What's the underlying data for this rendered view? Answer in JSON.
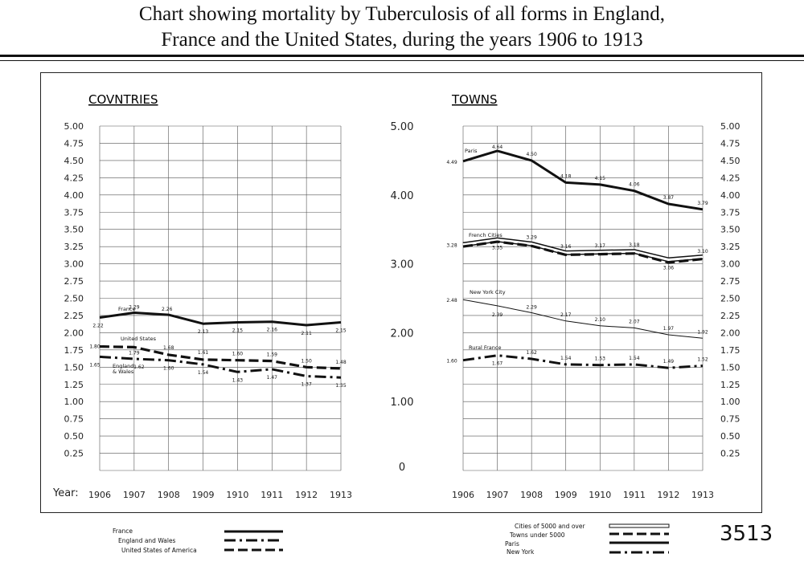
{
  "title_line1": "Chart showing mortality by Tuberculosis of all forms in England,",
  "title_line2": "France and the United States, during the years 1906 to 1913",
  "page_number": "3513",
  "year_label": "Year:",
  "legend_left": [
    "France",
    "England and Wales",
    "United States of America"
  ],
  "legend_right": [
    "Cities of 5000 and over",
    "Towns under 5000",
    "Paris",
    "New York"
  ],
  "chart_data": [
    {
      "type": "line",
      "title": "COVNTRIES",
      "xlabel": "Year:",
      "x": [
        "1906",
        "1907",
        "1908",
        "1909",
        "1910",
        "1911",
        "1912",
        "1913"
      ],
      "ylim": [
        0,
        5
      ],
      "yticks": [
        "5.00",
        "4.75",
        "4.50",
        "4.25",
        "4.00",
        "3.75",
        "3.50",
        "3.25",
        "3.00",
        "2.75",
        "2.50",
        "2.25",
        "2.00",
        "1.75",
        "1.50",
        "1.25",
        "1.00",
        "0.75",
        "0.50",
        "0.25"
      ],
      "series": [
        {
          "name": "France",
          "style": "solid",
          "values": [
            2.22,
            2.29,
            2.26,
            2.13,
            2.15,
            2.16,
            2.11,
            2.15
          ],
          "labels": [
            "2.22",
            "2.29",
            "2.26",
            "2.13",
            "2.15",
            "2.16",
            "2.11",
            "2.15"
          ]
        },
        {
          "name": "United States",
          "style": "dashed",
          "values": [
            1.8,
            1.79,
            1.68,
            1.61,
            1.6,
            1.59,
            1.5,
            1.48
          ],
          "labels": [
            "1.80",
            "1.79",
            "1.68",
            "1.61",
            "1.60",
            "1.59",
            "1.50",
            "1.48"
          ]
        },
        {
          "name": "England & Wales",
          "style": "dashdot",
          "values": [
            1.65,
            1.62,
            1.6,
            1.54,
            1.43,
            1.47,
            1.37,
            1.35
          ],
          "labels": [
            "1.65",
            "1.62",
            "1.60",
            "1.54",
            "1.43",
            "1.47",
            "1.37",
            "1.35"
          ]
        }
      ]
    },
    {
      "type": "line",
      "title": "TOWNS",
      "x": [
        "1906",
        "1907",
        "1908",
        "1909",
        "1910",
        "1911",
        "1912",
        "1913"
      ],
      "ylim": [
        0,
        5
      ],
      "yticks_left": [
        "5.00",
        "4.00",
        "3.00",
        "2.00",
        "1.00",
        "0"
      ],
      "yticks_right": [
        "5.00",
        "4.75",
        "4.50",
        "4.25",
        "4.00",
        "3.75",
        "3.50",
        "3.25",
        "3.00",
        "2.75",
        "2.50",
        "2.25",
        "2.00",
        "1.75",
        "1.50",
        "1.25",
        "1.00",
        "0.75",
        "0.50",
        "0.25"
      ],
      "series": [
        {
          "name": "Paris",
          "style": "solid",
          "values": [
            4.49,
            4.64,
            4.5,
            4.18,
            4.15,
            4.06,
            3.87,
            3.79
          ],
          "labels": [
            "4.49",
            "4.64",
            "4.50",
            "4.18",
            "4.15",
            "4.06",
            "3.87",
            "3.79"
          ]
        },
        {
          "name": "French Cities",
          "style": "outline",
          "values": [
            3.28,
            3.35,
            3.29,
            3.16,
            3.17,
            3.18,
            3.06,
            3.1
          ],
          "labels": [
            "3.28",
            "3.35",
            "3.29",
            "3.16",
            "3.17",
            "3.18",
            "3.06",
            "3.10"
          ]
        },
        {
          "name": "",
          "style": "dashed",
          "values": [
            3.25,
            3.32,
            3.26,
            3.13,
            3.14,
            3.15,
            3.02,
            3.07
          ],
          "labels": []
        },
        {
          "name": "New York City",
          "style": "thin",
          "values": [
            2.48,
            2.39,
            2.29,
            2.17,
            2.1,
            2.07,
            1.97,
            1.92
          ],
          "labels": [
            "2.48",
            "2.39",
            "2.29",
            "2.17",
            "2.10",
            "2.07",
            "1.97",
            "1.92"
          ]
        },
        {
          "name": "Rural France",
          "style": "dashdot",
          "values": [
            1.6,
            1.67,
            1.62,
            1.54,
            1.53,
            1.54,
            1.49,
            1.52
          ],
          "labels": [
            "1.60",
            "1.67",
            "1.62",
            "1.54",
            "1.53",
            "1.54",
            "1.49",
            "1.52"
          ]
        }
      ]
    }
  ]
}
